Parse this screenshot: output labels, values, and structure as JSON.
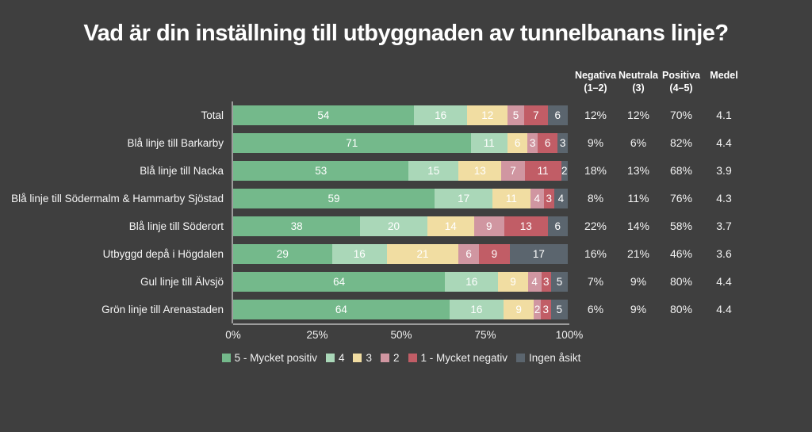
{
  "title": "Vad är din inställning till utbyggnaden av tunnelbanans linje?",
  "colors": {
    "background": "#3f3f3f",
    "axis": "#9c9c9c",
    "text": "#ffffff",
    "segments": [
      "#74b98b",
      "#aad7b8",
      "#f1dda2",
      "#d096a1",
      "#c15d66",
      "#5b656e"
    ]
  },
  "stat_columns": [
    {
      "title": "Negativa",
      "subtitle": "(1–2)"
    },
    {
      "title": "Neutrala",
      "subtitle": "(3)"
    },
    {
      "title": "Positiva",
      "subtitle": "(4–5)"
    },
    {
      "title": "Medel",
      "subtitle": ""
    }
  ],
  "rows": [
    {
      "label": "Total",
      "segments": [
        54,
        16,
        12,
        5,
        7,
        6
      ],
      "stats": [
        "12%",
        "12%",
        "70%",
        "4.1"
      ]
    },
    {
      "label": "Blå linje till Barkarby",
      "segments": [
        71,
        11,
        6,
        3,
        6,
        3
      ],
      "stats": [
        "9%",
        "6%",
        "82%",
        "4.4"
      ]
    },
    {
      "label": "Blå linje till Nacka",
      "segments": [
        53,
        15,
        13,
        7,
        11,
        2
      ],
      "stats": [
        "18%",
        "13%",
        "68%",
        "3.9"
      ]
    },
    {
      "label": "Blå linje till Södermalm & Hammarby Sjöstad",
      "segments": [
        59,
        17,
        11,
        4,
        3,
        4
      ],
      "stats": [
        "8%",
        "11%",
        "76%",
        "4.3"
      ]
    },
    {
      "label": "Blå linje till Söderort",
      "segments": [
        38,
        20,
        14,
        9,
        13,
        6
      ],
      "stats": [
        "22%",
        "14%",
        "58%",
        "3.7"
      ]
    },
    {
      "label": "Utbyggd depå i Högdalen",
      "segments": [
        29,
        16,
        21,
        6,
        9,
        17
      ],
      "stats": [
        "16%",
        "21%",
        "46%",
        "3.6"
      ]
    },
    {
      "label": "Gul linje till Älvsjö",
      "segments": [
        64,
        16,
        9,
        4,
        3,
        5
      ],
      "stats": [
        "7%",
        "9%",
        "80%",
        "4.4"
      ]
    },
    {
      "label": "Grön linje till Arenastaden",
      "segments": [
        64,
        16,
        9,
        2,
        3,
        5
      ],
      "stats": [
        "6%",
        "9%",
        "80%",
        "4.4"
      ]
    }
  ],
  "x_ticks": [
    "0%",
    "25%",
    "50%",
    "75%",
    "100%"
  ],
  "legend": [
    {
      "label": "5 - Mycket positiv"
    },
    {
      "label": "4"
    },
    {
      "label": "3"
    },
    {
      "label": "2"
    },
    {
      "label": "1 - Mycket negativ"
    },
    {
      "label": "Ingen åsikt"
    }
  ],
  "chart_data": {
    "type": "bar",
    "orientation": "horizontal",
    "stacked": true,
    "title": "Vad är din inställning till utbyggnaden av tunnelbanans linje?",
    "categories": [
      "Total",
      "Blå linje till Barkarby",
      "Blå linje till Nacka",
      "Blå linje till Södermalm & Hammarby Sjöstad",
      "Blå linje till Söderort",
      "Utbyggd depå i Högdalen",
      "Gul linje till Älvsjö",
      "Grön linje till Arenastaden"
    ],
    "series": [
      {
        "name": "5 - Mycket positiv",
        "color": "#74b98b",
        "values": [
          54,
          71,
          53,
          59,
          38,
          29,
          64,
          64
        ]
      },
      {
        "name": "4",
        "color": "#aad7b8",
        "values": [
          16,
          11,
          15,
          17,
          20,
          16,
          16,
          16
        ]
      },
      {
        "name": "3",
        "color": "#f1dda2",
        "values": [
          12,
          6,
          13,
          11,
          14,
          21,
          9,
          9
        ]
      },
      {
        "name": "2",
        "color": "#d096a1",
        "values": [
          5,
          3,
          7,
          4,
          9,
          6,
          4,
          2
        ]
      },
      {
        "name": "1 - Mycket negativ",
        "color": "#c15d66",
        "values": [
          7,
          6,
          11,
          3,
          13,
          9,
          3,
          3
        ]
      },
      {
        "name": "Ingen åsikt",
        "color": "#5b656e",
        "values": [
          6,
          3,
          2,
          4,
          6,
          17,
          5,
          5
        ]
      }
    ],
    "summary_table": {
      "columns": [
        "Negativa (1–2)",
        "Neutrala (3)",
        "Positiva (4–5)",
        "Medel"
      ],
      "rows": [
        [
          "12%",
          "12%",
          "70%",
          "4.1"
        ],
        [
          "9%",
          "6%",
          "82%",
          "4.4"
        ],
        [
          "18%",
          "13%",
          "68%",
          "3.9"
        ],
        [
          "8%",
          "11%",
          "76%",
          "4.3"
        ],
        [
          "22%",
          "14%",
          "58%",
          "3.7"
        ],
        [
          "16%",
          "21%",
          "46%",
          "3.6"
        ],
        [
          "7%",
          "9%",
          "80%",
          "4.4"
        ],
        [
          "6%",
          "9%",
          "80%",
          "4.4"
        ]
      ]
    },
    "xlabel": "",
    "ylabel": "",
    "xlim": [
      0,
      100
    ],
    "x_tick_labels": [
      "0%",
      "25%",
      "50%",
      "75%",
      "100%"
    ],
    "grid": false,
    "legend_position": "bottom"
  }
}
